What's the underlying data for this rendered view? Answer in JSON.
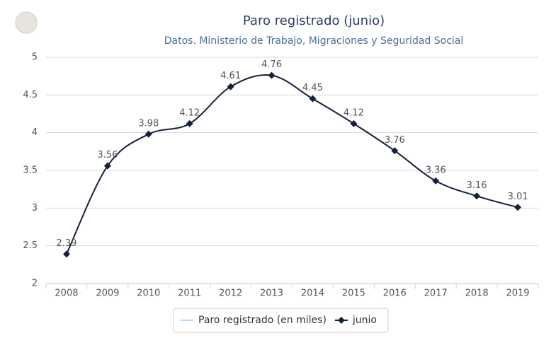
{
  "chart_data": {
    "type": "line",
    "title": "Paro registrado (junio)",
    "subtitle": "Datos. Ministerio de Trabajo, Migraciones y Seguridad Social",
    "categories": [
      "2008",
      "2009",
      "2010",
      "2011",
      "2012",
      "2013",
      "2014",
      "2015",
      "2016",
      "2017",
      "2018",
      "2019"
    ],
    "series": [
      {
        "name": "Paro registrado (en miles)",
        "color": "#c5d5e8",
        "values": [
          null,
          null,
          null,
          null,
          null,
          null,
          null,
          null,
          null,
          null,
          null,
          null
        ]
      },
      {
        "name": "junio",
        "color": "#14213d",
        "values": [
          2.39,
          3.56,
          3.98,
          4.12,
          4.61,
          4.76,
          4.45,
          4.12,
          3.76,
          3.36,
          3.16,
          3.01
        ]
      }
    ],
    "ylim": [
      2,
      5
    ],
    "yticks": [
      2,
      2.5,
      3,
      3.5,
      4,
      4.5,
      5
    ],
    "grid": true,
    "legend": "bottom"
  }
}
